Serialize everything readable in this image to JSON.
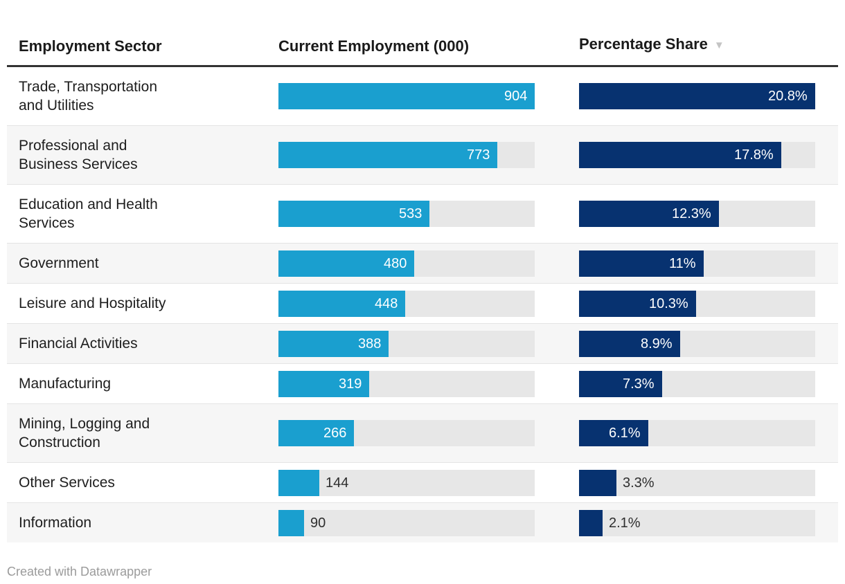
{
  "header": {
    "col1": "Employment Sector",
    "col2": "Current Employment (000)",
    "col3": "Percentage Share",
    "sort_icon": "▼",
    "sorted_column": "Percentage Share",
    "sort_order": "descending"
  },
  "footer": {
    "credit": "Created with Datawrapper"
  },
  "colors": {
    "employment_bar": "#1a9fcf",
    "share_bar": "#073270",
    "bar_track": "#e7e7e7",
    "row_stripe": "#f6f6f6",
    "row_divider": "#e4e4e4",
    "header_rule": "#333333",
    "sort_icon": "#c4c4c4",
    "credit_text": "#9b9b9b"
  },
  "chart_data": {
    "type": "table",
    "title": "",
    "columns": [
      "Employment Sector",
      "Current Employment (000)",
      "Percentage Share"
    ],
    "categories": [
      "Trade, Transportation and Utilities",
      "Professional and Business Services",
      "Education and Health Services",
      "Government",
      "Leisure and Hospitality",
      "Financial Activities",
      "Manufacturing",
      "Mining, Logging and Construction",
      "Other Services",
      "Information"
    ],
    "series": [
      {
        "name": "Current Employment (000)",
        "values": [
          904,
          773,
          533,
          480,
          448,
          388,
          319,
          266,
          144,
          90
        ],
        "labels": [
          "904",
          "773",
          "533",
          "480",
          "448",
          "388",
          "319",
          "266",
          "144",
          "90"
        ],
        "axis_max": 904
      },
      {
        "name": "Percentage Share",
        "values": [
          20.8,
          17.8,
          12.3,
          11,
          10.3,
          8.9,
          7.3,
          6.1,
          3.3,
          2.1
        ],
        "labels": [
          "20.8%",
          "17.8%",
          "12.3%",
          "11%",
          "10.3%",
          "8.9%",
          "7.3%",
          "6.1%",
          "3.3%",
          "2.1%"
        ],
        "axis_max": 20.8
      }
    ],
    "sorted_by": "Percentage Share",
    "sort_order": "descending",
    "legend": "none",
    "grid": "off"
  }
}
